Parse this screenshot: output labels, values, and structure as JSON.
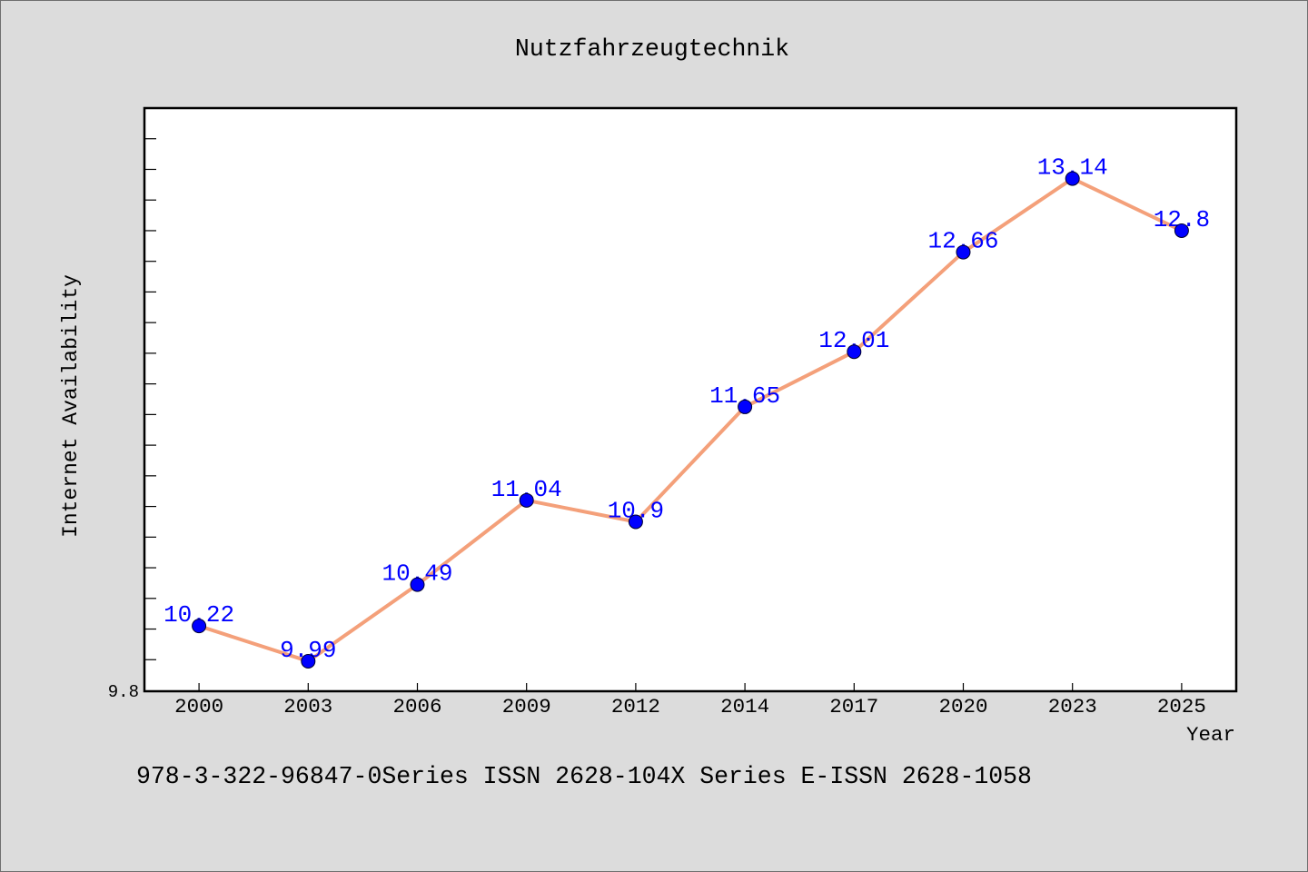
{
  "chart_data": {
    "type": "line",
    "title": "Nutzfahrzeugtechnik",
    "xlabel": "Year",
    "ylabel": "Internet Availability",
    "categories": [
      "2000",
      "2003",
      "2006",
      "2009",
      "2012",
      "2014",
      "2017",
      "2020",
      "2023",
      "2025"
    ],
    "series": [
      {
        "values": [
          10.22,
          9.99,
          10.49,
          11.04,
          10.9,
          11.65,
          12.01,
          12.66,
          13.14,
          12.8
        ],
        "data_labels": true
      }
    ],
    "ylim": [
      9.8,
      13.6
    ],
    "ytick_step": 0.2,
    "ytick_labels": [
      {
        "value": 9.8,
        "label": "9.8"
      }
    ],
    "grid": false,
    "legend": null,
    "footnote": "978-3-322-96847-0Series ISSN 2628-104X Series E-ISSN 2628-1058",
    "colors": {
      "background": "#dcdcdc",
      "plot_background": "#ffffff",
      "line": "#f4a07a",
      "marker": "#0000ff",
      "data_labels": "#0000ff"
    }
  }
}
